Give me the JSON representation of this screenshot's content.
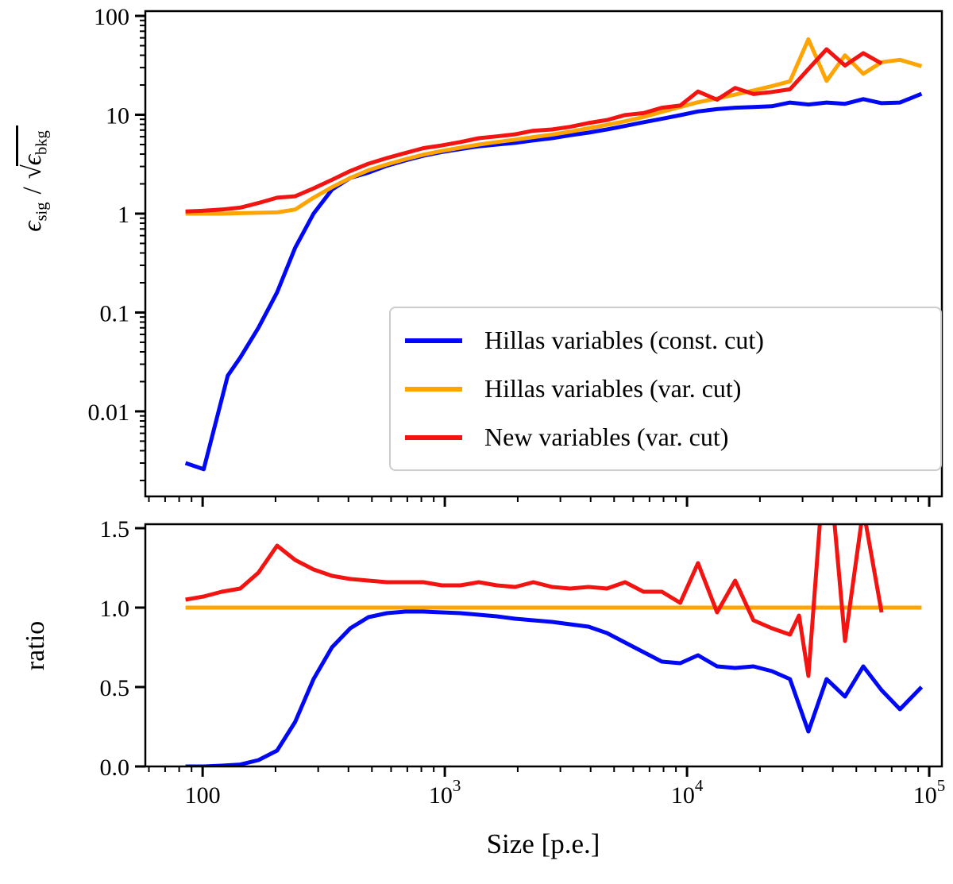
{
  "figure": {
    "background": "#ffffff",
    "axis_color": "#000000"
  },
  "chart_data": [
    {
      "id": "top",
      "type": "line",
      "xscale": "log",
      "yscale": "log",
      "xlim": [
        58,
        112800
      ],
      "ylim": [
        0.00138,
        111.8
      ],
      "grid": false,
      "legend_position": "lower right",
      "ylabel": "epsilon_sig / sqrt(epsilon_bkg)",
      "ylabel_parts": {
        "eps1": "ϵ",
        "sub1": "sig",
        "slash": "/",
        "root": "√",
        "eps2": "ϵ",
        "sub2": "bkg"
      },
      "xticks": {
        "values": [
          100,
          1000,
          10000,
          100000
        ],
        "labels": [
          "",
          "",
          "",
          ""
        ]
      },
      "yticks": {
        "values": [
          100,
          10,
          1,
          0.1,
          0.01
        ],
        "labels": [
          "100",
          "10",
          "1",
          "0.1",
          "0.01"
        ]
      },
      "series": [
        {
          "name": "Hillas variables (const. cut)",
          "color": "#0008f5",
          "x": [
            85,
            101,
            127,
            143,
            170,
            203,
            241,
            287,
            342,
            407,
            484,
            576,
            686,
            816,
            971,
            1160,
            1380,
            1640,
            1950,
            2320,
            2770,
            3290,
            3920,
            4670,
            5550,
            6610,
            7870,
            9370,
            11100,
            13300,
            15800,
            18800,
            22400,
            26600,
            31700,
            37700,
            44900,
            53400,
            63600,
            75700,
            93000
          ],
          "y": [
            0.003,
            0.0026,
            0.023,
            0.035,
            0.07,
            0.16,
            0.45,
            1.0,
            1.75,
            2.3,
            2.6,
            3.05,
            3.45,
            3.85,
            4.2,
            4.5,
            4.8,
            5.0,
            5.2,
            5.5,
            5.8,
            6.2,
            6.6,
            7.1,
            7.7,
            8.4,
            9.1,
            9.9,
            10.8,
            11.4,
            11.8,
            12.0,
            12.2,
            13.3,
            12.7,
            13.3,
            12.9,
            14.4,
            13.1,
            13.3,
            16.3
          ]
        },
        {
          "name": "Hillas variables (var. cut)",
          "color": "#ffa400",
          "x": [
            85,
            101,
            120,
            143,
            170,
            203,
            241,
            287,
            342,
            407,
            484,
            576,
            686,
            816,
            971,
            1160,
            1380,
            1640,
            1950,
            2320,
            2770,
            3290,
            3920,
            4670,
            5550,
            6610,
            7870,
            9370,
            11100,
            13300,
            15800,
            18800,
            22400,
            26600,
            31700,
            37700,
            44900,
            53400,
            63600,
            75700,
            93000
          ],
          "y": [
            1.0,
            1.0,
            1.0,
            1.01,
            1.02,
            1.03,
            1.1,
            1.45,
            1.85,
            2.3,
            2.75,
            3.15,
            3.55,
            3.95,
            4.3,
            4.65,
            5.0,
            5.3,
            5.6,
            5.95,
            6.3,
            6.75,
            7.3,
            7.9,
            8.6,
            9.5,
            10.7,
            12.0,
            13.4,
            14.6,
            16.0,
            17.6,
            19.5,
            21.8,
            58.0,
            22.0,
            40.0,
            26.0,
            34.0,
            36.0,
            31.0
          ]
        },
        {
          "name": "New variables (var. cut)",
          "color": "#f31310",
          "x": [
            85,
            101,
            120,
            143,
            170,
            203,
            241,
            287,
            342,
            407,
            484,
            576,
            686,
            816,
            971,
            1160,
            1380,
            1640,
            1950,
            2320,
            2770,
            3290,
            3920,
            4670,
            5550,
            6610,
            7870,
            9370,
            11100,
            13300,
            15800,
            18800,
            22400,
            26600,
            31700,
            37700,
            44900,
            53400,
            63600
          ],
          "y": [
            1.05,
            1.07,
            1.1,
            1.15,
            1.28,
            1.45,
            1.5,
            1.8,
            2.2,
            2.7,
            3.2,
            3.65,
            4.1,
            4.6,
            4.9,
            5.3,
            5.8,
            6.05,
            6.35,
            6.9,
            7.1,
            7.55,
            8.25,
            8.85,
            9.95,
            10.4,
            11.8,
            12.4,
            17.2,
            14.2,
            18.7,
            16.2,
            17.0,
            18.1,
            29.0,
            46.0,
            31.5,
            42.0,
            33.0
          ]
        }
      ]
    },
    {
      "id": "bottom",
      "type": "line",
      "xscale": "log",
      "yscale": "linear",
      "xlim": [
        58,
        112800
      ],
      "ylim": [
        0,
        1.525
      ],
      "grid": false,
      "ylabel": "ratio",
      "xlabel": "Size [p.e.]",
      "xticks": {
        "values": [
          100,
          1000,
          10000,
          100000
        ],
        "labels": [
          "100",
          "10^3",
          "10^4",
          "10^5"
        ]
      },
      "yticks": {
        "values": [
          0,
          0.5,
          1.0,
          1.5
        ],
        "labels": [
          "0.0",
          "0.5",
          "1.0",
          "1.5"
        ]
      },
      "series": [
        {
          "name": "Hillas variables (const. cut) ratio",
          "color": "#0008f5",
          "x": [
            85,
            101,
            120,
            143,
            170,
            203,
            241,
            287,
            342,
            407,
            484,
            576,
            686,
            816,
            971,
            1160,
            1380,
            1640,
            1950,
            2320,
            2770,
            3290,
            3920,
            4670,
            5550,
            6610,
            7870,
            9370,
            11100,
            13300,
            15800,
            18800,
            22400,
            26600,
            31700,
            37700,
            44900,
            53400,
            63600,
            75700,
            93000
          ],
          "y": [
            0.0,
            0.0,
            0.005,
            0.012,
            0.04,
            0.1,
            0.28,
            0.55,
            0.75,
            0.87,
            0.94,
            0.965,
            0.975,
            0.975,
            0.97,
            0.965,
            0.955,
            0.945,
            0.93,
            0.92,
            0.91,
            0.895,
            0.88,
            0.84,
            0.78,
            0.72,
            0.66,
            0.65,
            0.7,
            0.63,
            0.62,
            0.63,
            0.6,
            0.55,
            0.22,
            0.55,
            0.44,
            0.63,
            0.48,
            0.36,
            0.5
          ]
        },
        {
          "name": "Hillas variables (var. cut) ratio",
          "color": "#ffa400",
          "x": [
            85,
            93000
          ],
          "y": [
            1.0,
            1.0
          ]
        },
        {
          "name": "New variables (var. cut) ratio",
          "color": "#f31310",
          "x": [
            85,
            101,
            120,
            143,
            170,
            203,
            241,
            287,
            342,
            407,
            484,
            576,
            686,
            816,
            971,
            1160,
            1380,
            1640,
            1950,
            2320,
            2770,
            3290,
            3920,
            4670,
            5550,
            6610,
            7870,
            9370,
            11100,
            13300,
            15800,
            18800,
            22400,
            26600,
            29000,
            31700,
            37700,
            44900,
            53400,
            63600
          ],
          "y": [
            1.05,
            1.07,
            1.1,
            1.12,
            1.22,
            1.39,
            1.3,
            1.24,
            1.2,
            1.18,
            1.17,
            1.16,
            1.16,
            1.16,
            1.14,
            1.14,
            1.16,
            1.14,
            1.13,
            1.16,
            1.13,
            1.12,
            1.13,
            1.12,
            1.16,
            1.1,
            1.1,
            1.03,
            1.28,
            0.97,
            1.17,
            0.92,
            0.87,
            0.83,
            0.95,
            0.57,
            2.09,
            0.79,
            1.62,
            0.97
          ]
        }
      ]
    }
  ]
}
